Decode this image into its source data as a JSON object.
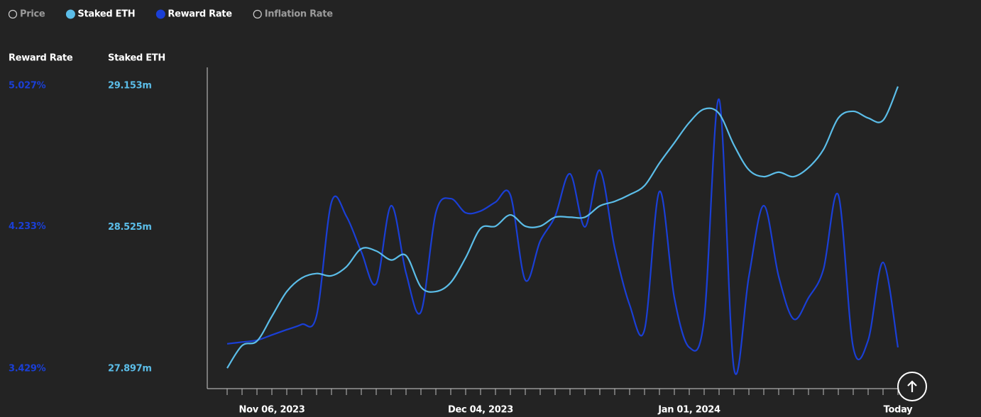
{
  "chart_data": {
    "type": "line",
    "legend": [
      {
        "name": "Price",
        "active": false
      },
      {
        "name": "Staked ETH",
        "active": true,
        "color": "#5bbde8"
      },
      {
        "name": "Reward Rate",
        "active": true,
        "color": "#1a3fd6"
      },
      {
        "name": "Inflation Rate",
        "active": false
      }
    ],
    "categories": [
      null,
      null,
      null,
      "Nov 06, 2023",
      null,
      null,
      null,
      null,
      null,
      null,
      null,
      null,
      null,
      null,
      null,
      null,
      null,
      "Dec 04, 2023",
      null,
      null,
      null,
      null,
      null,
      null,
      null,
      null,
      null,
      null,
      null,
      null,
      null,
      "Jan 01, 2024",
      null,
      null,
      null,
      null,
      null,
      null,
      null,
      null,
      null,
      null,
      null,
      null,
      null,
      "Today"
    ],
    "series": [
      {
        "name": "Reward Rate",
        "color": "#1a3fd6",
        "axis": "y",
        "values": [
          3.57,
          3.58,
          3.59,
          3.62,
          3.65,
          3.68,
          3.73,
          4.37,
          4.29,
          4.09,
          3.91,
          4.35,
          3.97,
          3.75,
          4.31,
          4.39,
          4.31,
          4.32,
          4.37,
          4.41,
          3.93,
          4.15,
          4.29,
          4.53,
          4.23,
          4.55,
          4.11,
          3.79,
          3.65,
          4.43,
          3.83,
          3.55,
          3.71,
          4.95,
          3.43,
          3.95,
          4.35,
          3.95,
          3.71,
          3.83,
          3.99,
          4.41,
          3.55,
          3.59,
          4.03,
          3.55
        ]
      },
      {
        "name": "Staked ETH",
        "color": "#5bbde8",
        "axis": "y2",
        "values": [
          27.9,
          28.0,
          28.02,
          28.13,
          28.24,
          28.3,
          28.32,
          28.31,
          28.35,
          28.43,
          28.42,
          28.38,
          28.4,
          28.26,
          28.24,
          28.28,
          28.39,
          28.52,
          28.53,
          28.58,
          28.53,
          28.53,
          28.57,
          28.57,
          28.57,
          28.62,
          28.64,
          28.67,
          28.71,
          28.81,
          28.9,
          28.99,
          29.05,
          29.03,
          28.89,
          28.78,
          28.75,
          28.77,
          28.75,
          28.79,
          28.87,
          29.01,
          29.04,
          29.01,
          29.0,
          29.15
        ]
      }
    ],
    "ylim": [
      3.317,
      5.131
    ],
    "yticks": [
      {
        "value": 5.027,
        "label": "5.027%"
      },
      {
        "value": 4.233,
        "label": "4.233%"
      },
      {
        "value": 3.429,
        "label": "3.429%"
      }
    ],
    "y2lim": [
      27.809,
      29.235
    ],
    "y2ticks": [
      {
        "value": 29.153,
        "label": "29.153m"
      },
      {
        "value": 28.525,
        "label": "28.525m"
      },
      {
        "value": 27.897,
        "label": "27.897m"
      }
    ],
    "grid": false
  }
}
